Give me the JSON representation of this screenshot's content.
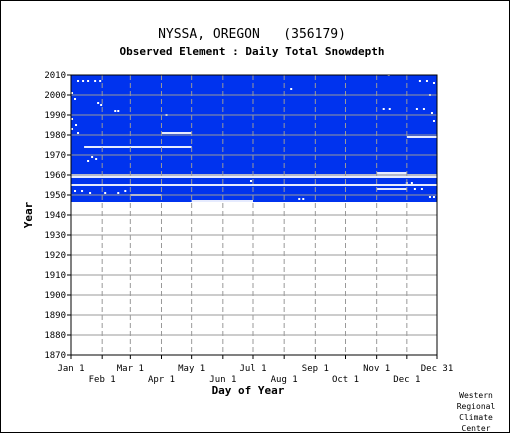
{
  "chart_data": {
    "type": "heatmap",
    "title": "NYSSA, OREGON   (356179)",
    "subtitle": "Observed Element : Daily Total Snowdepth",
    "xlabel": "Day of Year",
    "ylabel": "Year",
    "ylim": [
      1870,
      2010
    ],
    "xlim": [
      1,
      365
    ],
    "y_ticks": [
      1870,
      1880,
      1890,
      1900,
      1910,
      1920,
      1930,
      1940,
      1950,
      1960,
      1970,
      1980,
      1990,
      2000,
      2010
    ],
    "x_ticks_top": [
      {
        "day": 1,
        "label": "Jan 1"
      },
      {
        "day": 60,
        "label": "Mar 1"
      },
      {
        "day": 121,
        "label": "May 1"
      },
      {
        "day": 182,
        "label": "Jul 1"
      },
      {
        "day": 244,
        "label": "Sep 1"
      },
      {
        "day": 305,
        "label": "Nov 1"
      },
      {
        "day": 365,
        "label": "Dec 31"
      }
    ],
    "x_ticks_bottom": [
      {
        "day": 32,
        "label": "Feb 1"
      },
      {
        "day": 91,
        "label": "Apr 1"
      },
      {
        "day": 152,
        "label": "Jun 1"
      },
      {
        "day": 213,
        "label": "Aug 1"
      },
      {
        "day": 274,
        "label": "Oct 1"
      },
      {
        "day": 335,
        "label": "Dec 1"
      }
    ],
    "grid": true,
    "data_color": "#0033ee",
    "gap_color": "#ffffff",
    "coverage": [
      {
        "year_start": 1946.5,
        "year_end": 2010.5,
        "day_start": 1,
        "day_end": 365,
        "status": "observed"
      },
      {
        "year_start": 1946.5,
        "year_end": 1947.5,
        "day_start": 182,
        "day_end": 365,
        "status": "observed"
      }
    ],
    "gaps": [
      {
        "year": 1960,
        "day_start": 1,
        "day_end": 365
      },
      {
        "year": 1959,
        "day_start": 1,
        "day_end": 365
      },
      {
        "year": 1955,
        "day_start": 1,
        "day_end": 365
      },
      {
        "year": 1974,
        "day_start": 14,
        "day_end": 121
      },
      {
        "year": 1981,
        "day_start": 91,
        "day_end": 121
      },
      {
        "year": 1950,
        "day_start": 60,
        "day_end": 91
      },
      {
        "year": 1947,
        "day_start": 121,
        "day_end": 182
      },
      {
        "year": 1979,
        "day_start": 335,
        "day_end": 365
      },
      {
        "year": 1961,
        "day_start": 305,
        "day_end": 335
      },
      {
        "year": 1953,
        "day_start": 305,
        "day_end": 335
      }
    ],
    "missing_days": [
      {
        "year": 2007,
        "day": 8
      },
      {
        "year": 2007,
        "day": 13
      },
      {
        "year": 2007,
        "day": 18
      },
      {
        "year": 2007,
        "day": 25
      },
      {
        "year": 2007,
        "day": 30
      },
      {
        "year": 2001,
        "day": 2
      },
      {
        "year": 1998,
        "day": 5
      },
      {
        "year": 1996,
        "day": 28
      },
      {
        "year": 1995,
        "day": 31
      },
      {
        "year": 1992,
        "day": 45
      },
      {
        "year": 1992,
        "day": 48
      },
      {
        "year": 1990,
        "day": 96
      },
      {
        "year": 1988,
        "day": 2
      },
      {
        "year": 1985,
        "day": 6
      },
      {
        "year": 1983,
        "day": 2
      },
      {
        "year": 1981,
        "day": 8
      },
      {
        "year": 1969,
        "day": 22
      },
      {
        "year": 1968,
        "day": 26
      },
      {
        "year": 1967,
        "day": 18
      },
      {
        "year": 1952,
        "day": 5
      },
      {
        "year": 1952,
        "day": 12
      },
      {
        "year": 1951,
        "day": 20
      },
      {
        "year": 1951,
        "day": 35
      },
      {
        "year": 1951,
        "day": 48
      },
      {
        "year": 1952,
        "day": 55
      },
      {
        "year": 2003,
        "day": 220
      },
      {
        "year": 1957,
        "day": 180
      },
      {
        "year": 1948,
        "day": 228
      },
      {
        "year": 1948,
        "day": 232
      },
      {
        "year": 2010,
        "day": 317
      },
      {
        "year": 2007,
        "day": 348
      },
      {
        "year": 2007,
        "day": 355
      },
      {
        "year": 2006,
        "day": 362
      },
      {
        "year": 2000,
        "day": 358
      },
      {
        "year": 1993,
        "day": 312
      },
      {
        "year": 1993,
        "day": 318
      },
      {
        "year": 1993,
        "day": 345
      },
      {
        "year": 1993,
        "day": 352
      },
      {
        "year": 1991,
        "day": 360
      },
      {
        "year": 1987,
        "day": 362
      },
      {
        "year": 1956,
        "day": 335
      },
      {
        "year": 1956,
        "day": 340
      },
      {
        "year": 1953,
        "day": 343
      },
      {
        "year": 1953,
        "day": 350
      },
      {
        "year": 1949,
        "day": 358
      },
      {
        "year": 1949,
        "day": 362
      }
    ]
  },
  "credit": [
    "Western",
    "Regional",
    "Climate",
    "Center"
  ]
}
